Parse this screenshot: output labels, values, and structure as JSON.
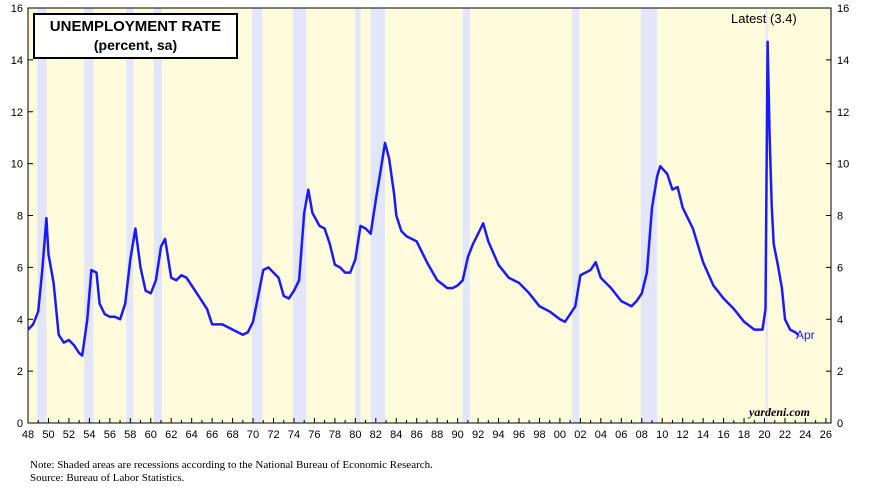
{
  "title": {
    "line1": "UNEMPLOYMENT RATE",
    "line2": "(percent, sa)"
  },
  "latest_label": "Latest (3.4)",
  "end_label": "Apr",
  "watermark": "yardeni.com",
  "notes": {
    "line1": "Note: Shaded areas are recessions according to the National Bureau of Economic Research.",
    "line2": "Source: Bureau of Labor Statistics."
  },
  "colors": {
    "background": "#fdfbdc",
    "recession": "#e3e6fa",
    "series": "#1a1aff"
  },
  "chart_data": {
    "type": "line",
    "title": "UNEMPLOYMENT RATE (percent, sa)",
    "xlabel": "",
    "ylabel": "",
    "xlim": [
      1948,
      2026.5
    ],
    "ylim": [
      0,
      16
    ],
    "y_ticks": [
      0,
      2,
      4,
      6,
      8,
      10,
      12,
      14,
      16
    ],
    "x_tick_labels": [
      "48",
      "50",
      "52",
      "54",
      "56",
      "58",
      "60",
      "62",
      "64",
      "66",
      "68",
      "70",
      "72",
      "74",
      "76",
      "78",
      "80",
      "82",
      "84",
      "86",
      "88",
      "90",
      "92",
      "94",
      "96",
      "98",
      "00",
      "02",
      "04",
      "06",
      "08",
      "10",
      "12",
      "14",
      "16",
      "18",
      "20",
      "22",
      "24",
      "26"
    ],
    "recessions": [
      [
        1948.9,
        1949.8
      ],
      [
        1953.5,
        1954.4
      ],
      [
        1957.6,
        1958.3
      ],
      [
        1960.3,
        1961.1
      ],
      [
        1969.9,
        1970.9
      ],
      [
        1973.9,
        1975.2
      ],
      [
        1980.0,
        1980.5
      ],
      [
        1981.5,
        1982.9
      ],
      [
        1990.5,
        1991.2
      ],
      [
        2001.2,
        2001.9
      ],
      [
        2007.9,
        2009.5
      ],
      [
        2020.1,
        2020.3
      ]
    ],
    "series": [
      {
        "name": "Unemployment rate",
        "x": [
          1948.0,
          1948.5,
          1949.0,
          1949.4,
          1949.8,
          1950.0,
          1950.5,
          1951.0,
          1951.5,
          1952.0,
          1952.5,
          1953.0,
          1953.3,
          1953.8,
          1954.2,
          1954.7,
          1955.0,
          1955.5,
          1956.0,
          1956.5,
          1957.0,
          1957.5,
          1958.0,
          1958.5,
          1959.0,
          1959.5,
          1960.0,
          1960.5,
          1961.0,
          1961.4,
          1962.0,
          1962.5,
          1963.0,
          1963.5,
          1964.0,
          1964.5,
          1965.0,
          1965.5,
          1966.0,
          1967.0,
          1968.0,
          1969.0,
          1969.5,
          1970.0,
          1970.5,
          1971.0,
          1971.5,
          1972.0,
          1972.5,
          1973.0,
          1973.5,
          1974.0,
          1974.5,
          1975.0,
          1975.4,
          1975.8,
          1976.5,
          1977.0,
          1977.5,
          1978.0,
          1978.5,
          1979.0,
          1979.5,
          1980.0,
          1980.5,
          1981.0,
          1981.5,
          1982.0,
          1982.5,
          1982.9,
          1983.3,
          1983.8,
          1984.0,
          1984.5,
          1985.0,
          1986.0,
          1987.0,
          1988.0,
          1989.0,
          1989.5,
          1990.0,
          1990.5,
          1991.0,
          1991.5,
          1992.0,
          1992.5,
          1993.0,
          1994.0,
          1995.0,
          1996.0,
          1997.0,
          1998.0,
          1999.0,
          2000.0,
          2000.5,
          2001.0,
          2001.5,
          2002.0,
          2002.5,
          2003.0,
          2003.5,
          2004.0,
          2005.0,
          2006.0,
          2007.0,
          2007.5,
          2008.0,
          2008.5,
          2009.0,
          2009.5,
          2009.8,
          2010.5,
          2011.0,
          2011.5,
          2012.0,
          2013.0,
          2014.0,
          2015.0,
          2016.0,
          2017.0,
          2018.0,
          2019.0,
          2019.8,
          2020.1,
          2020.3,
          2020.5,
          2020.7,
          2020.9,
          2021.3,
          2021.7,
          2022.0,
          2022.5,
          2023.0,
          2023.3
        ],
        "values": [
          3.6,
          3.8,
          4.3,
          5.9,
          7.9,
          6.5,
          5.4,
          3.4,
          3.1,
          3.2,
          3.0,
          2.7,
          2.6,
          4.0,
          5.9,
          5.8,
          4.6,
          4.2,
          4.1,
          4.1,
          4.0,
          4.6,
          6.3,
          7.5,
          6.0,
          5.1,
          5.0,
          5.5,
          6.8,
          7.1,
          5.6,
          5.5,
          5.7,
          5.6,
          5.3,
          5.0,
          4.7,
          4.4,
          3.8,
          3.8,
          3.6,
          3.4,
          3.5,
          3.9,
          4.9,
          5.9,
          6.0,
          5.8,
          5.6,
          4.9,
          4.8,
          5.1,
          5.5,
          8.1,
          9.0,
          8.1,
          7.6,
          7.5,
          6.9,
          6.1,
          6.0,
          5.8,
          5.8,
          6.3,
          7.6,
          7.5,
          7.3,
          8.6,
          9.8,
          10.8,
          10.2,
          8.8,
          8.0,
          7.4,
          7.2,
          7.0,
          6.2,
          5.5,
          5.2,
          5.2,
          5.3,
          5.5,
          6.4,
          6.9,
          7.3,
          7.7,
          7.0,
          6.1,
          5.6,
          5.4,
          5.0,
          4.5,
          4.3,
          4.0,
          3.9,
          4.2,
          4.5,
          5.7,
          5.8,
          5.9,
          6.2,
          5.6,
          5.2,
          4.7,
          4.5,
          4.7,
          5.0,
          5.8,
          8.3,
          9.5,
          9.9,
          9.6,
          9.0,
          9.1,
          8.3,
          7.5,
          6.2,
          5.3,
          4.8,
          4.4,
          3.9,
          3.6,
          3.6,
          4.4,
          14.7,
          11.1,
          8.4,
          6.9,
          6.1,
          5.2,
          4.0,
          3.6,
          3.5,
          3.4
        ]
      }
    ]
  }
}
